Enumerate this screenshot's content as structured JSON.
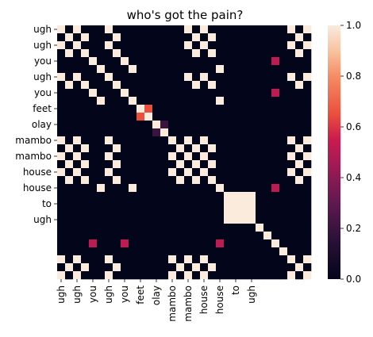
{
  "chart_data": {
    "type": "heatmap",
    "title": "who's got the pain?",
    "x_tick_labels": [
      "ugh",
      "ugh",
      "you",
      "ugh",
      "you",
      "feet",
      "olay",
      "mambo",
      "mambo",
      "house",
      "house",
      "to",
      "ugh"
    ],
    "y_tick_labels": [
      "ugh",
      "ugh",
      "you",
      "ugh",
      "you",
      "feet",
      "olay",
      "mambo",
      "mambo",
      "house",
      "house",
      "to",
      "ugh"
    ],
    "axis_labels": [
      "ugh",
      "ugh",
      "ugh",
      "ugh",
      "you",
      "you",
      "you",
      "you",
      "ugh",
      "ugh",
      "ugh",
      "ugh",
      "ugh",
      "ugh",
      "you",
      "you",
      "you",
      "you",
      "feet",
      "feet",
      "olay",
      "olay",
      "mambo",
      "mambo",
      "mambo",
      "mambo",
      "mambo",
      "mambo",
      "mambo",
      "mambo",
      "house",
      "house",
      "house",
      "house",
      "to",
      "to",
      "ugh",
      "ugh",
      "ugh",
      "ugh",
      "ugh",
      "ugh"
    ],
    "values": [
      [
        1,
        0,
        1,
        0,
        0,
        0,
        1,
        0,
        0,
        0,
        0,
        0,
        0,
        0,
        0,
        0,
        1,
        0,
        1,
        0,
        0,
        0,
        0,
        0,
        0,
        0,
        0,
        0,
        0,
        1,
        0,
        1
      ],
      [
        0,
        1,
        0,
        1,
        0,
        0,
        0,
        1,
        0,
        0,
        0,
        0,
        0,
        0,
        0,
        0,
        0,
        1,
        0,
        1,
        0,
        0,
        0,
        0,
        0,
        0,
        0,
        0,
        0,
        0,
        1,
        0
      ],
      [
        1,
        0,
        1,
        0,
        0,
        0,
        1,
        0,
        0,
        0,
        0,
        0,
        0,
        0,
        0,
        0,
        1,
        0,
        1,
        0,
        0,
        0,
        0,
        0,
        0,
        0,
        0,
        0,
        0,
        1,
        0,
        1
      ],
      [
        0,
        1,
        0,
        1,
        0,
        0,
        0,
        1,
        0,
        0,
        0,
        0,
        0,
        0,
        0,
        0,
        0,
        1,
        0,
        1,
        0,
        0,
        0,
        0,
        0,
        0,
        0,
        0,
        0,
        0,
        1,
        0
      ],
      [
        0,
        0,
        0,
        0,
        1,
        0,
        0,
        0,
        1,
        0,
        0,
        0,
        0,
        0,
        0,
        0,
        0,
        0,
        0,
        0,
        0,
        0,
        0,
        0,
        0,
        0,
        0,
        0.52,
        0,
        0,
        0,
        0
      ],
      [
        0,
        0,
        0,
        0,
        0,
        1,
        0,
        0,
        0,
        1,
        0,
        0,
        0,
        0,
        0,
        0,
        0,
        0,
        0,
        0,
        1,
        0,
        0,
        0,
        0,
        0,
        0,
        0,
        0,
        0,
        0,
        0
      ],
      [
        1,
        0,
        1,
        0,
        0,
        0,
        1,
        0,
        0,
        0,
        0,
        0,
        0,
        0,
        0,
        0,
        1,
        0,
        1,
        0,
        0,
        0,
        0,
        0,
        0,
        0,
        0,
        0,
        0,
        1,
        0,
        1
      ],
      [
        0,
        1,
        0,
        1,
        0,
        0,
        0,
        1,
        0,
        0,
        0,
        0,
        0,
        0,
        0,
        0,
        0,
        1,
        0,
        1,
        0,
        0,
        0,
        0,
        0,
        0,
        0,
        0,
        0,
        0,
        1,
        0
      ],
      [
        0,
        0,
        0,
        0,
        1,
        0,
        0,
        0,
        1,
        0,
        0,
        0,
        0,
        0,
        0,
        0,
        0,
        0,
        0,
        0,
        0,
        0,
        0,
        0,
        0,
        0,
        0,
        0.52,
        0,
        0,
        0,
        0
      ],
      [
        0,
        0,
        0,
        0,
        0,
        1,
        0,
        0,
        0,
        1,
        0,
        0,
        0,
        0,
        0,
        0,
        0,
        0,
        0,
        0,
        1,
        0,
        0,
        0,
        0,
        0,
        0,
        0,
        0,
        0,
        0,
        0
      ],
      [
        0,
        0,
        0,
        0,
        0,
        0,
        0,
        0,
        0,
        0,
        1,
        0.65,
        0,
        0,
        0,
        0,
        0,
        0,
        0,
        0,
        0,
        0,
        0,
        0,
        0,
        0,
        0,
        0,
        0,
        0,
        0,
        0
      ],
      [
        0,
        0,
        0,
        0,
        0,
        0,
        0,
        0,
        0,
        0,
        0.65,
        1,
        0,
        0,
        0,
        0,
        0,
        0,
        0,
        0,
        0,
        0,
        0,
        0,
        0,
        0,
        0,
        0,
        0,
        0,
        0,
        0
      ],
      [
        0,
        0,
        0,
        0,
        0,
        0,
        0,
        0,
        0,
        0,
        0,
        0,
        1,
        0.2,
        0,
        0,
        0,
        0,
        0,
        0,
        0,
        0,
        0,
        0,
        0,
        0,
        0,
        0,
        0,
        0,
        0,
        0
      ],
      [
        0,
        0,
        0,
        0,
        0,
        0,
        0,
        0,
        0,
        0,
        0,
        0,
        0.2,
        1,
        0,
        0,
        0,
        0,
        0,
        0,
        0,
        0,
        0,
        0,
        0,
        0,
        0,
        0,
        0,
        0,
        0,
        0
      ],
      [
        1,
        0,
        1,
        0,
        0,
        0,
        1,
        0,
        0,
        0,
        0,
        0,
        0,
        0,
        1,
        0,
        1,
        0,
        1,
        0,
        0,
        0,
        0,
        0,
        0,
        0,
        0,
        0,
        0,
        1,
        0,
        1
      ],
      [
        0,
        1,
        0,
        1,
        0,
        0,
        0,
        1,
        0,
        0,
        0,
        0,
        0,
        0,
        0,
        1,
        0,
        1,
        0,
        1,
        0,
        0,
        0,
        0,
        0,
        0,
        0,
        0,
        0,
        0,
        1,
        0
      ],
      [
        1,
        0,
        1,
        0,
        0,
        0,
        1,
        0,
        0,
        0,
        0,
        0,
        0,
        0,
        1,
        0,
        1,
        0,
        1,
        0,
        0,
        0,
        0,
        0,
        0,
        0,
        0,
        0,
        0,
        1,
        0,
        1
      ],
      [
        0,
        1,
        0,
        1,
        0,
        0,
        0,
        1,
        0,
        0,
        0,
        0,
        0,
        0,
        0,
        1,
        0,
        1,
        0,
        1,
        0,
        0,
        0,
        0,
        0,
        0,
        0,
        0,
        0,
        0,
        1,
        0
      ],
      [
        1,
        0,
        1,
        0,
        0,
        0,
        1,
        0,
        0,
        0,
        0,
        0,
        0,
        0,
        1,
        0,
        1,
        0,
        1,
        0,
        0,
        0,
        0,
        0,
        0,
        0,
        0,
        0,
        0,
        1,
        0,
        1
      ],
      [
        0,
        1,
        0,
        1,
        0,
        0,
        0,
        1,
        0,
        0,
        0,
        0,
        0,
        0,
        0,
        1,
        0,
        1,
        0,
        1,
        0,
        0,
        0,
        0,
        0,
        0,
        0,
        0,
        0,
        0,
        1,
        0
      ],
      [
        0,
        0,
        0,
        0,
        0,
        1,
        0,
        0,
        0,
        1,
        0,
        0,
        0,
        0,
        0,
        0,
        0,
        0,
        0,
        0,
        1,
        0,
        0,
        0,
        0,
        0,
        0,
        0.52,
        0,
        0,
        0,
        0
      ],
      [
        0,
        0,
        0,
        0,
        0,
        0,
        0,
        0,
        0,
        0,
        0,
        0,
        0,
        0,
        0,
        0,
        0,
        0,
        0,
        0,
        0,
        1,
        1,
        1,
        1,
        0,
        0,
        0,
        0,
        0,
        0,
        0
      ],
      [
        0,
        0,
        0,
        0,
        0,
        0,
        0,
        0,
        0,
        0,
        0,
        0,
        0,
        0,
        0,
        0,
        0,
        0,
        0,
        0,
        0,
        1,
        1,
        1,
        1,
        0,
        0,
        0,
        0,
        0,
        0,
        0
      ],
      [
        0,
        0,
        0,
        0,
        0,
        0,
        0,
        0,
        0,
        0,
        0,
        0,
        0,
        0,
        0,
        0,
        0,
        0,
        0,
        0,
        0,
        1,
        1,
        1,
        1,
        0,
        0,
        0,
        0,
        0,
        0,
        0
      ],
      [
        0,
        0,
        0,
        0,
        0,
        0,
        0,
        0,
        0,
        0,
        0,
        0,
        0,
        0,
        0,
        0,
        0,
        0,
        0,
        0,
        0,
        1,
        1,
        1,
        1,
        0,
        0,
        0,
        0,
        0,
        0,
        0
      ],
      [
        0,
        0,
        0,
        0,
        0,
        0,
        0,
        0,
        0,
        0,
        0,
        0,
        0,
        0,
        0,
        0,
        0,
        0,
        0,
        0,
        0,
        0,
        0,
        0,
        0,
        1,
        0,
        0,
        0,
        0,
        0,
        0
      ],
      [
        0,
        0,
        0,
        0,
        0,
        0,
        0,
        0,
        0,
        0,
        0,
        0,
        0,
        0,
        0,
        0,
        0,
        0,
        0,
        0,
        0,
        0,
        0,
        0,
        0,
        0,
        1,
        0,
        0,
        0,
        0,
        0
      ],
      [
        0,
        0,
        0,
        0,
        0.52,
        0,
        0,
        0,
        0.52,
        0,
        0,
        0,
        0,
        0,
        0,
        0,
        0,
        0,
        0,
        0,
        0.52,
        0,
        0,
        0,
        0,
        0,
        0,
        1,
        0,
        0,
        0,
        0
      ],
      [
        0,
        0,
        0,
        0,
        0,
        0,
        0,
        0,
        0,
        0,
        0,
        0,
        0,
        0,
        0,
        0,
        0,
        0,
        0,
        0,
        0,
        0,
        0,
        0,
        0,
        0,
        0,
        0,
        1,
        0,
        0,
        0
      ],
      [
        1,
        0,
        1,
        0,
        0,
        0,
        1,
        0,
        0,
        0,
        0,
        0,
        0,
        0,
        1,
        0,
        1,
        0,
        1,
        0,
        0,
        0,
        0,
        0,
        0,
        0,
        0,
        0,
        0,
        1,
        0,
        1
      ],
      [
        0,
        1,
        0,
        1,
        0,
        0,
        0,
        1,
        0,
        0,
        0,
        0,
        0,
        0,
        0,
        1,
        0,
        1,
        0,
        1,
        0,
        0,
        0,
        0,
        0,
        0,
        0,
        0,
        0,
        0,
        1,
        0
      ],
      [
        1,
        0,
        1,
        0,
        0,
        0,
        1,
        0,
        0,
        0,
        0,
        0,
        0,
        0,
        1,
        0,
        1,
        0,
        1,
        0,
        0,
        0,
        0,
        0,
        0,
        0,
        0,
        0,
        0,
        1,
        0,
        1
      ]
    ],
    "colorbar": {
      "min": 0.0,
      "max": 1.0,
      "ticks": [
        "0.0",
        "0.2",
        "0.4",
        "0.6",
        "0.8",
        "1.0"
      ]
    },
    "colormap": "rocket",
    "grid": false,
    "legend": "colorbar-right"
  }
}
